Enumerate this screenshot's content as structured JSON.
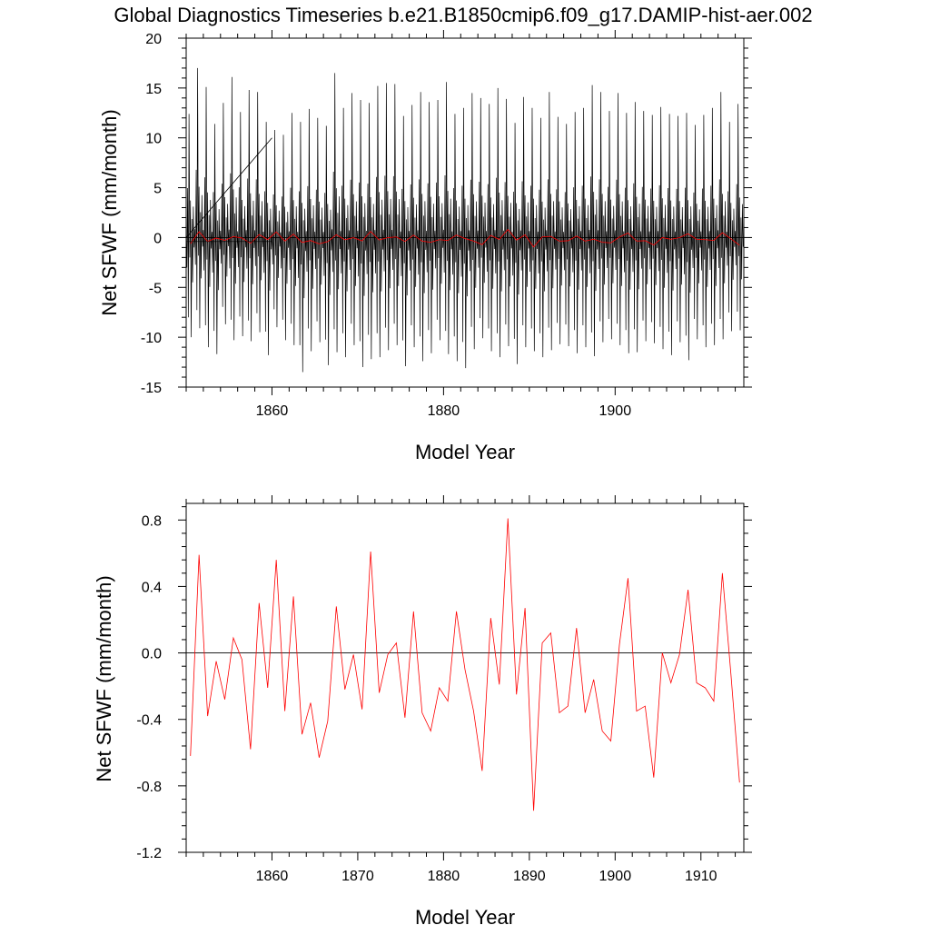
{
  "title": "Global Diagnostics Timeseries b.e21.B1850cmip6.f09_g17.DAMIP-hist-aer.002",
  "chart_data": [
    {
      "type": "line",
      "title": "Global Diagnostics Timeseries b.e21.B1850cmip6.f09_g17.DAMIP-hist-aer.002",
      "xlabel": "Model Year",
      "ylabel": "Net SFWF (mm/month)",
      "xlim": [
        1850,
        1915
      ],
      "ylim": [
        -15,
        20
      ],
      "xticks": [
        1860,
        1880,
        1900
      ],
      "yticks": [
        20,
        15,
        10,
        5,
        0,
        -5,
        -10,
        -15
      ],
      "ytick_labels": [
        "20",
        "15",
        "10",
        "5",
        "0",
        "-5",
        "-10",
        "-15"
      ],
      "zero_line": 0,
      "series": [
        {
          "color": "#000000",
          "resolution": "monthly",
          "annual_peaks": [
            12.4,
            17.0,
            15.1,
            11.4,
            13.5,
            16.1,
            12.6,
            14.8,
            14.6,
            11.6,
            10.8,
            10.3,
            12.5,
            11.6,
            12.9,
            12.0,
            11.2,
            16.5,
            13.0,
            14.5,
            13.8,
            13.5,
            15.2,
            15.5,
            15.4,
            12.2,
            13.3,
            14.6,
            13.6,
            13.8,
            15.6,
            12.4,
            13.0,
            14.5,
            14.0,
            13.4,
            15.0,
            13.9,
            11.5,
            14.1,
            13.0,
            12.0,
            14.6,
            12.1,
            11.4,
            12.6,
            13.0,
            15.3,
            14.6,
            12.7,
            14.5,
            12.5,
            13.6,
            12.7,
            12.3,
            13.1,
            12.4,
            12.2,
            12.5,
            11.3,
            12.3,
            13.0,
            14.6,
            11.6,
            13.4
          ],
          "annual_troughs": [
            -10.0,
            -9.1,
            -11.0,
            -11.7,
            -8.7,
            -10.3,
            -9.9,
            -10.4,
            -9.5,
            -11.8,
            -9.0,
            -10.3,
            -10.8,
            -13.5,
            -11.4,
            -10.5,
            -12.8,
            -11.5,
            -12.0,
            -10.8,
            -13.0,
            -12.2,
            -12.0,
            -11.3,
            -10.8,
            -12.9,
            -11.0,
            -12.4,
            -11.6,
            -10.3,
            -11.7,
            -12.4,
            -13.1,
            -11.2,
            -10.1,
            -11.4,
            -12.0,
            -10.9,
            -12.7,
            -11.0,
            -11.4,
            -12.0,
            -11.3,
            -10.7,
            -10.9,
            -11.6,
            -11.0,
            -11.9,
            -10.5,
            -10.2,
            -10.8,
            -11.6,
            -11.5,
            -10.4,
            -10.6,
            -11.2,
            -11.8,
            -10.5,
            -12.3,
            -10.2,
            -11.0,
            -10.8,
            -10.2,
            -9.4,
            -9.3
          ]
        },
        {
          "color": "#ff0000",
          "resolution": "annual mean",
          "x": [
            1850.5,
            1851.5,
            1852.5,
            1853.5,
            1854.5,
            1855.5,
            1856.5,
            1857.5,
            1858.5,
            1859.5,
            1860.5,
            1861.5,
            1862.5,
            1863.5,
            1864.5,
            1865.5,
            1866.5,
            1867.5,
            1868.5,
            1869.5,
            1870.5,
            1871.5,
            1872.5,
            1873.5,
            1874.5,
            1875.5,
            1876.5,
            1877.5,
            1878.5,
            1879.5,
            1880.5,
            1881.5,
            1882.5,
            1883.5,
            1884.5,
            1885.5,
            1886.5,
            1887.5,
            1888.5,
            1889.5,
            1890.5,
            1891.5,
            1892.5,
            1893.5,
            1894.5,
            1895.5,
            1896.5,
            1897.5,
            1898.5,
            1899.5,
            1900.5,
            1901.5,
            1902.5,
            1903.5,
            1904.5,
            1905.5,
            1906.5,
            1907.5,
            1908.5,
            1909.5,
            1910.5,
            1911.5,
            1912.5,
            1913.5,
            1914.5
          ],
          "values": [
            -0.62,
            0.59,
            -0.38,
            -0.05,
            -0.28,
            0.09,
            -0.04,
            -0.58,
            0.3,
            -0.21,
            0.56,
            -0.35,
            0.34,
            -0.49,
            -0.3,
            -0.63,
            -0.41,
            0.28,
            -0.22,
            -0.01,
            -0.34,
            0.61,
            -0.24,
            -0.01,
            0.06,
            -0.39,
            0.25,
            -0.36,
            -0.47,
            -0.21,
            -0.29,
            0.25,
            -0.1,
            -0.35,
            -0.71,
            0.21,
            -0.19,
            0.81,
            -0.25,
            0.27,
            -0.95,
            0.06,
            0.12,
            -0.36,
            -0.32,
            0.15,
            -0.36,
            -0.16,
            -0.47,
            -0.53,
            0.05,
            0.45,
            -0.35,
            -0.32,
            -0.75,
            0.0,
            -0.18,
            -0.01,
            0.38,
            -0.18,
            -0.21,
            -0.29,
            0.48,
            -0.13,
            -0.78
          ]
        }
      ],
      "annotations": [
        "diagonal reference line from (1850, 0) to (1860, 10)"
      ]
    },
    {
      "type": "line",
      "xlabel": "Model Year",
      "ylabel": "Net SFWF (mm/month)",
      "xlim": [
        1850,
        1915
      ],
      "ylim": [
        -1.2,
        0.9
      ],
      "xticks": [
        1860,
        1870,
        1880,
        1890,
        1900,
        1910
      ],
      "yticks": [
        0.8,
        0.4,
        0.0,
        -0.4,
        -0.8,
        -1.2
      ],
      "ytick_labels": [
        "0.8",
        "0.4",
        "0.0",
        "-0.4",
        "-0.8",
        "-1.2"
      ],
      "zero_line": 0,
      "series": [
        {
          "color": "#ff0000",
          "resolution": "annual mean",
          "x": [
            1850.5,
            1851.5,
            1852.5,
            1853.5,
            1854.5,
            1855.5,
            1856.5,
            1857.5,
            1858.5,
            1859.5,
            1860.5,
            1861.5,
            1862.5,
            1863.5,
            1864.5,
            1865.5,
            1866.5,
            1867.5,
            1868.5,
            1869.5,
            1870.5,
            1871.5,
            1872.5,
            1873.5,
            1874.5,
            1875.5,
            1876.5,
            1877.5,
            1878.5,
            1879.5,
            1880.5,
            1881.5,
            1882.5,
            1883.5,
            1884.5,
            1885.5,
            1886.5,
            1887.5,
            1888.5,
            1889.5,
            1890.5,
            1891.5,
            1892.5,
            1893.5,
            1894.5,
            1895.5,
            1896.5,
            1897.5,
            1898.5,
            1899.5,
            1900.5,
            1901.5,
            1902.5,
            1903.5,
            1904.5,
            1905.5,
            1906.5,
            1907.5,
            1908.5,
            1909.5,
            1910.5,
            1911.5,
            1912.5,
            1913.5,
            1914.5
          ],
          "values": [
            -0.62,
            0.59,
            -0.38,
            -0.05,
            -0.28,
            0.09,
            -0.04,
            -0.58,
            0.3,
            -0.21,
            0.56,
            -0.35,
            0.34,
            -0.49,
            -0.3,
            -0.63,
            -0.41,
            0.28,
            -0.22,
            -0.01,
            -0.34,
            0.61,
            -0.24,
            -0.01,
            0.06,
            -0.39,
            0.25,
            -0.36,
            -0.47,
            -0.21,
            -0.29,
            0.25,
            -0.1,
            -0.35,
            -0.71,
            0.21,
            -0.19,
            0.81,
            -0.25,
            0.27,
            -0.95,
            0.06,
            0.12,
            -0.36,
            -0.32,
            0.15,
            -0.36,
            -0.16,
            -0.47,
            -0.53,
            0.05,
            0.45,
            -0.35,
            -0.32,
            -0.75,
            0.0,
            -0.18,
            -0.01,
            0.38,
            -0.18,
            -0.21,
            -0.29,
            0.48,
            -0.13,
            -0.78
          ]
        }
      ]
    }
  ]
}
